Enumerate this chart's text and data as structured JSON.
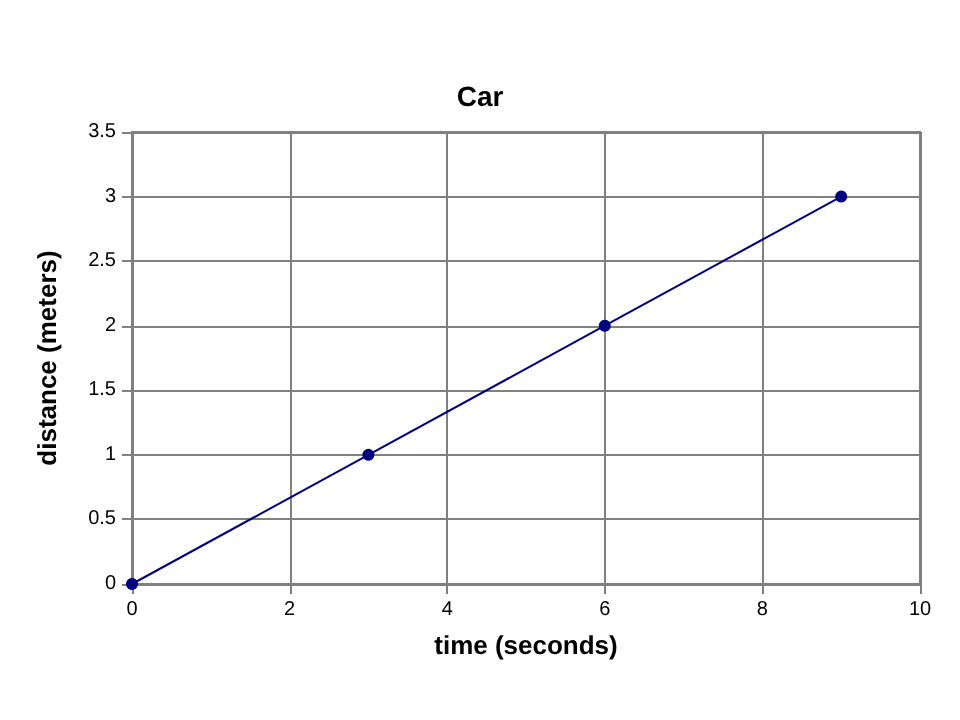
{
  "chart_data": {
    "type": "line",
    "title": "Car",
    "xlabel": "time (seconds)",
    "ylabel": "distance (meters)",
    "x": [
      0,
      3,
      6,
      9
    ],
    "series": [
      {
        "color": "#000080",
        "values": [
          0,
          1,
          2,
          3
        ]
      }
    ],
    "xlim": [
      0,
      10
    ],
    "xticks": [
      0,
      2,
      4,
      6,
      8,
      10
    ],
    "ylim": [
      0,
      3.5
    ],
    "yticks": [
      0,
      0.5,
      1,
      1.5,
      2,
      2.5,
      3,
      3.5
    ],
    "grid": true,
    "marker": "circle",
    "line_style": "solid"
  }
}
